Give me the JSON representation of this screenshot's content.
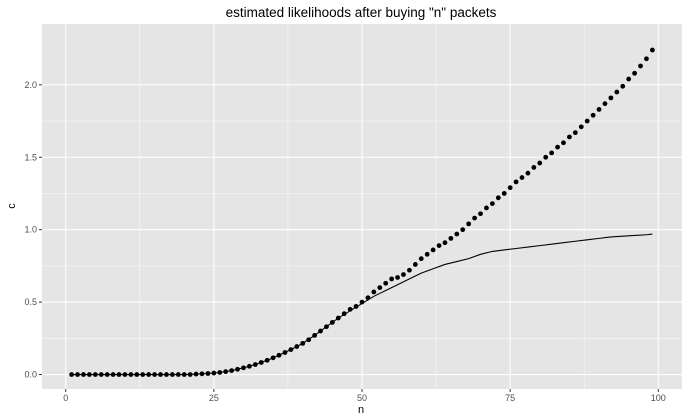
{
  "chart_data": {
    "type": "scatter",
    "title": "estimated likelihoods after buying \"n\" packets",
    "xlabel": "n",
    "ylabel": "c",
    "xlim": [
      -4,
      104
    ],
    "ylim": [
      -0.1,
      2.42
    ],
    "xticks": [
      0,
      25,
      50,
      75,
      100
    ],
    "yticks": [
      0.0,
      0.5,
      1.0,
      1.5,
      2.0
    ],
    "xtick_labels": [
      "0",
      "25",
      "50",
      "75",
      "100"
    ],
    "ytick_labels": [
      "0.0",
      "0.5",
      "1.0",
      "1.5",
      "2.0"
    ],
    "grid": true,
    "legend": "none",
    "colors": {
      "panel": "#e5e5e5",
      "grid": "#ffffff",
      "points": "#000000",
      "line": "#000000"
    },
    "series": [
      {
        "type": "scatter",
        "x": [
          1,
          2,
          3,
          4,
          5,
          6,
          7,
          8,
          9,
          10,
          11,
          12,
          13,
          14,
          15,
          16,
          17,
          18,
          19,
          20,
          21,
          22,
          23,
          24,
          25,
          26,
          27,
          28,
          29,
          30,
          31,
          32,
          33,
          34,
          35,
          36,
          37,
          38,
          39,
          40,
          41,
          42,
          43,
          44,
          45,
          46,
          47,
          48,
          49,
          50,
          51,
          52,
          53,
          54,
          55,
          56,
          57,
          58,
          59,
          60,
          61,
          62,
          63,
          64,
          65,
          66,
          67,
          68,
          69,
          70,
          71,
          72,
          73,
          74,
          75,
          76,
          77,
          78,
          79,
          80,
          81,
          82,
          83,
          84,
          85,
          86,
          87,
          88,
          89,
          90,
          91,
          92,
          93,
          94,
          95,
          96,
          97,
          98,
          99
        ],
        "y": [
          0,
          0,
          0,
          0,
          0,
          0,
          0,
          0,
          0,
          0,
          0,
          0,
          0,
          0,
          0,
          0,
          0,
          0,
          0,
          0,
          0,
          0.003,
          0.005,
          0.007,
          0.01,
          0.014,
          0.02,
          0.027,
          0.036,
          0.046,
          0.057,
          0.069,
          0.083,
          0.098,
          0.115,
          0.133,
          0.152,
          0.172,
          0.193,
          0.215,
          0.24,
          0.27,
          0.3,
          0.33,
          0.36,
          0.39,
          0.42,
          0.45,
          0.47,
          0.5,
          0.53,
          0.57,
          0.6,
          0.63,
          0.66,
          0.67,
          0.69,
          0.72,
          0.76,
          0.8,
          0.83,
          0.86,
          0.89,
          0.91,
          0.94,
          0.97,
          1.0,
          1.04,
          1.08,
          1.11,
          1.15,
          1.18,
          1.22,
          1.25,
          1.29,
          1.33,
          1.36,
          1.39,
          1.43,
          1.46,
          1.5,
          1.53,
          1.57,
          1.6,
          1.64,
          1.67,
          1.71,
          1.75,
          1.79,
          1.83,
          1.87,
          1.91,
          1.95,
          1.99,
          2.04,
          2.08,
          2.13,
          2.18,
          2.24
        ]
      },
      {
        "type": "line",
        "x": [
          1,
          5,
          10,
          15,
          20,
          22,
          24,
          26,
          28,
          30,
          32,
          34,
          36,
          38,
          40,
          42,
          44,
          46,
          48,
          50,
          52,
          54,
          56,
          58,
          60,
          62,
          64,
          66,
          68,
          70,
          72,
          74,
          76,
          78,
          80,
          82,
          84,
          86,
          88,
          90,
          92,
          94,
          96,
          98,
          99
        ],
        "y": [
          0,
          0,
          0,
          0,
          0,
          0.003,
          0.007,
          0.014,
          0.027,
          0.046,
          0.069,
          0.098,
          0.133,
          0.172,
          0.215,
          0.27,
          0.33,
          0.39,
          0.44,
          0.49,
          0.54,
          0.58,
          0.62,
          0.66,
          0.7,
          0.73,
          0.76,
          0.78,
          0.8,
          0.83,
          0.85,
          0.86,
          0.87,
          0.88,
          0.89,
          0.9,
          0.91,
          0.92,
          0.93,
          0.94,
          0.95,
          0.955,
          0.96,
          0.965,
          0.97
        ]
      }
    ]
  }
}
